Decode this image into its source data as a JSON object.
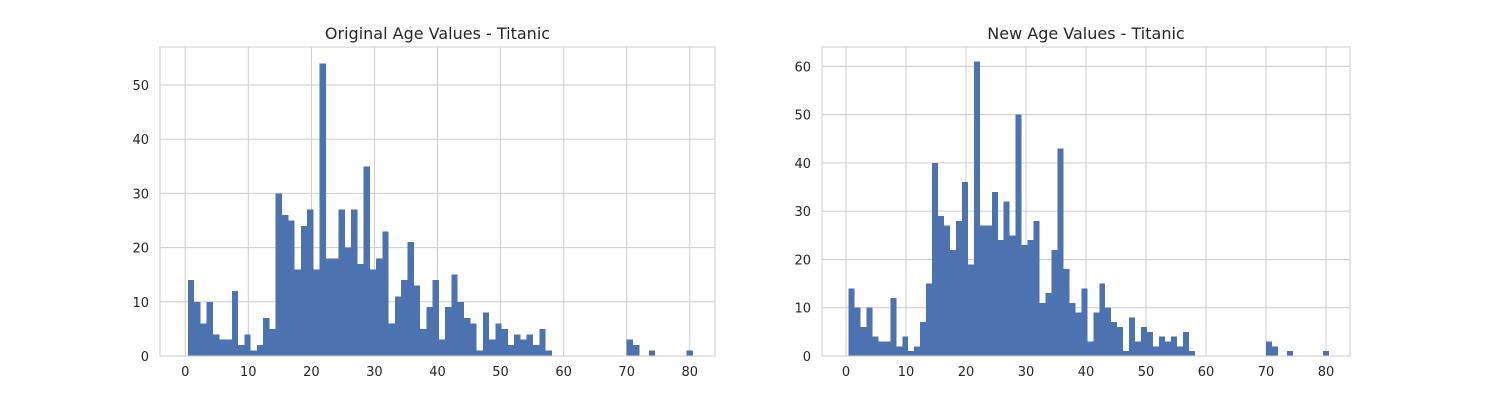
{
  "chart_data": [
    {
      "type": "bar",
      "title": "Original Age Values - Titanic",
      "xlabel": "",
      "ylabel": "",
      "xlim": [
        -4,
        84
      ],
      "ylim": [
        0,
        57
      ],
      "xticks": [
        0,
        10,
        20,
        30,
        40,
        50,
        60,
        70,
        80
      ],
      "yticks": [
        0,
        10,
        20,
        30,
        40,
        50
      ],
      "grid": true,
      "bar_color": "#4c72b0",
      "bin_start": 0.42,
      "bin_width": 0.995,
      "values": [
        14,
        10,
        6,
        10,
        4,
        3,
        3,
        12,
        2,
        4,
        1,
        2,
        7,
        5,
        30,
        26,
        25,
        16,
        24,
        27,
        16,
        54,
        18,
        18,
        27,
        20,
        27,
        17,
        35,
        16,
        18,
        23,
        6,
        11,
        14,
        21,
        13,
        5,
        9,
        14,
        3,
        9,
        15,
        10,
        7,
        6,
        1,
        8,
        3,
        6,
        5,
        2,
        4,
        3,
        4,
        2,
        5,
        1,
        0,
        0,
        0,
        0,
        0,
        0,
        0,
        0,
        0,
        0,
        0,
        0,
        0,
        0,
        0,
        0,
        0,
        0,
        0,
        0,
        0,
        0
      ],
      "sparse_bars": [
        {
          "x": 70.0,
          "value": 3
        },
        {
          "x": 71.0,
          "value": 2
        },
        {
          "x": 73.5,
          "value": 1
        },
        {
          "x": 79.5,
          "value": 1
        }
      ]
    },
    {
      "type": "bar",
      "title": "New Age Values - Titanic",
      "xlabel": "",
      "ylabel": "",
      "xlim": [
        -4,
        84
      ],
      "ylim": [
        0,
        64
      ],
      "xticks": [
        0,
        10,
        20,
        30,
        40,
        50,
        60,
        70,
        80
      ],
      "yticks": [
        0,
        10,
        20,
        30,
        40,
        50,
        60
      ],
      "grid": true,
      "bar_color": "#4c72b0",
      "bin_start": 0.42,
      "bin_width": 0.995,
      "values": [
        14,
        10,
        6,
        10,
        4,
        3,
        3,
        12,
        2,
        4,
        1,
        2,
        7,
        15,
        40,
        29,
        27,
        22,
        28,
        36,
        19,
        61,
        27,
        27,
        34,
        24,
        32,
        25,
        50,
        23,
        24,
        28,
        11,
        13,
        22,
        43,
        18,
        11,
        9,
        14,
        3,
        9,
        15,
        10,
        7,
        6,
        1,
        8,
        3,
        6,
        5,
        2,
        4,
        3,
        4,
        2,
        5,
        1,
        0,
        0,
        0,
        0,
        0,
        0,
        0,
        0,
        0,
        0,
        0,
        0,
        0,
        0,
        0,
        0,
        0,
        0,
        0,
        0,
        0,
        0
      ],
      "sparse_bars": [
        {
          "x": 70.0,
          "value": 3
        },
        {
          "x": 71.0,
          "value": 2
        },
        {
          "x": 73.5,
          "value": 1
        },
        {
          "x": 79.5,
          "value": 1
        }
      ]
    }
  ]
}
